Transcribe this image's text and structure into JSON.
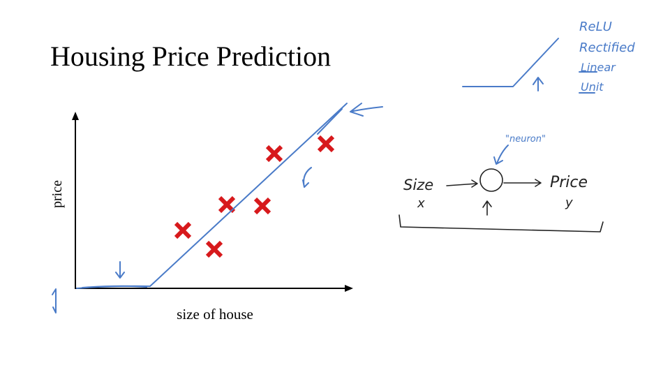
{
  "header": {
    "title": "Housing Price Prediction"
  },
  "plot": {
    "y_label": "price",
    "x_label": "size of house"
  },
  "relu_note": {
    "lines": [
      "ReLU",
      "Rectified",
      "Linear",
      "Unit"
    ]
  },
  "neuron_diagram": {
    "neuron_label": "\"neuron\"",
    "input": "Size",
    "input_symbol": "x",
    "output": "Price",
    "output_symbol": "y"
  }
}
